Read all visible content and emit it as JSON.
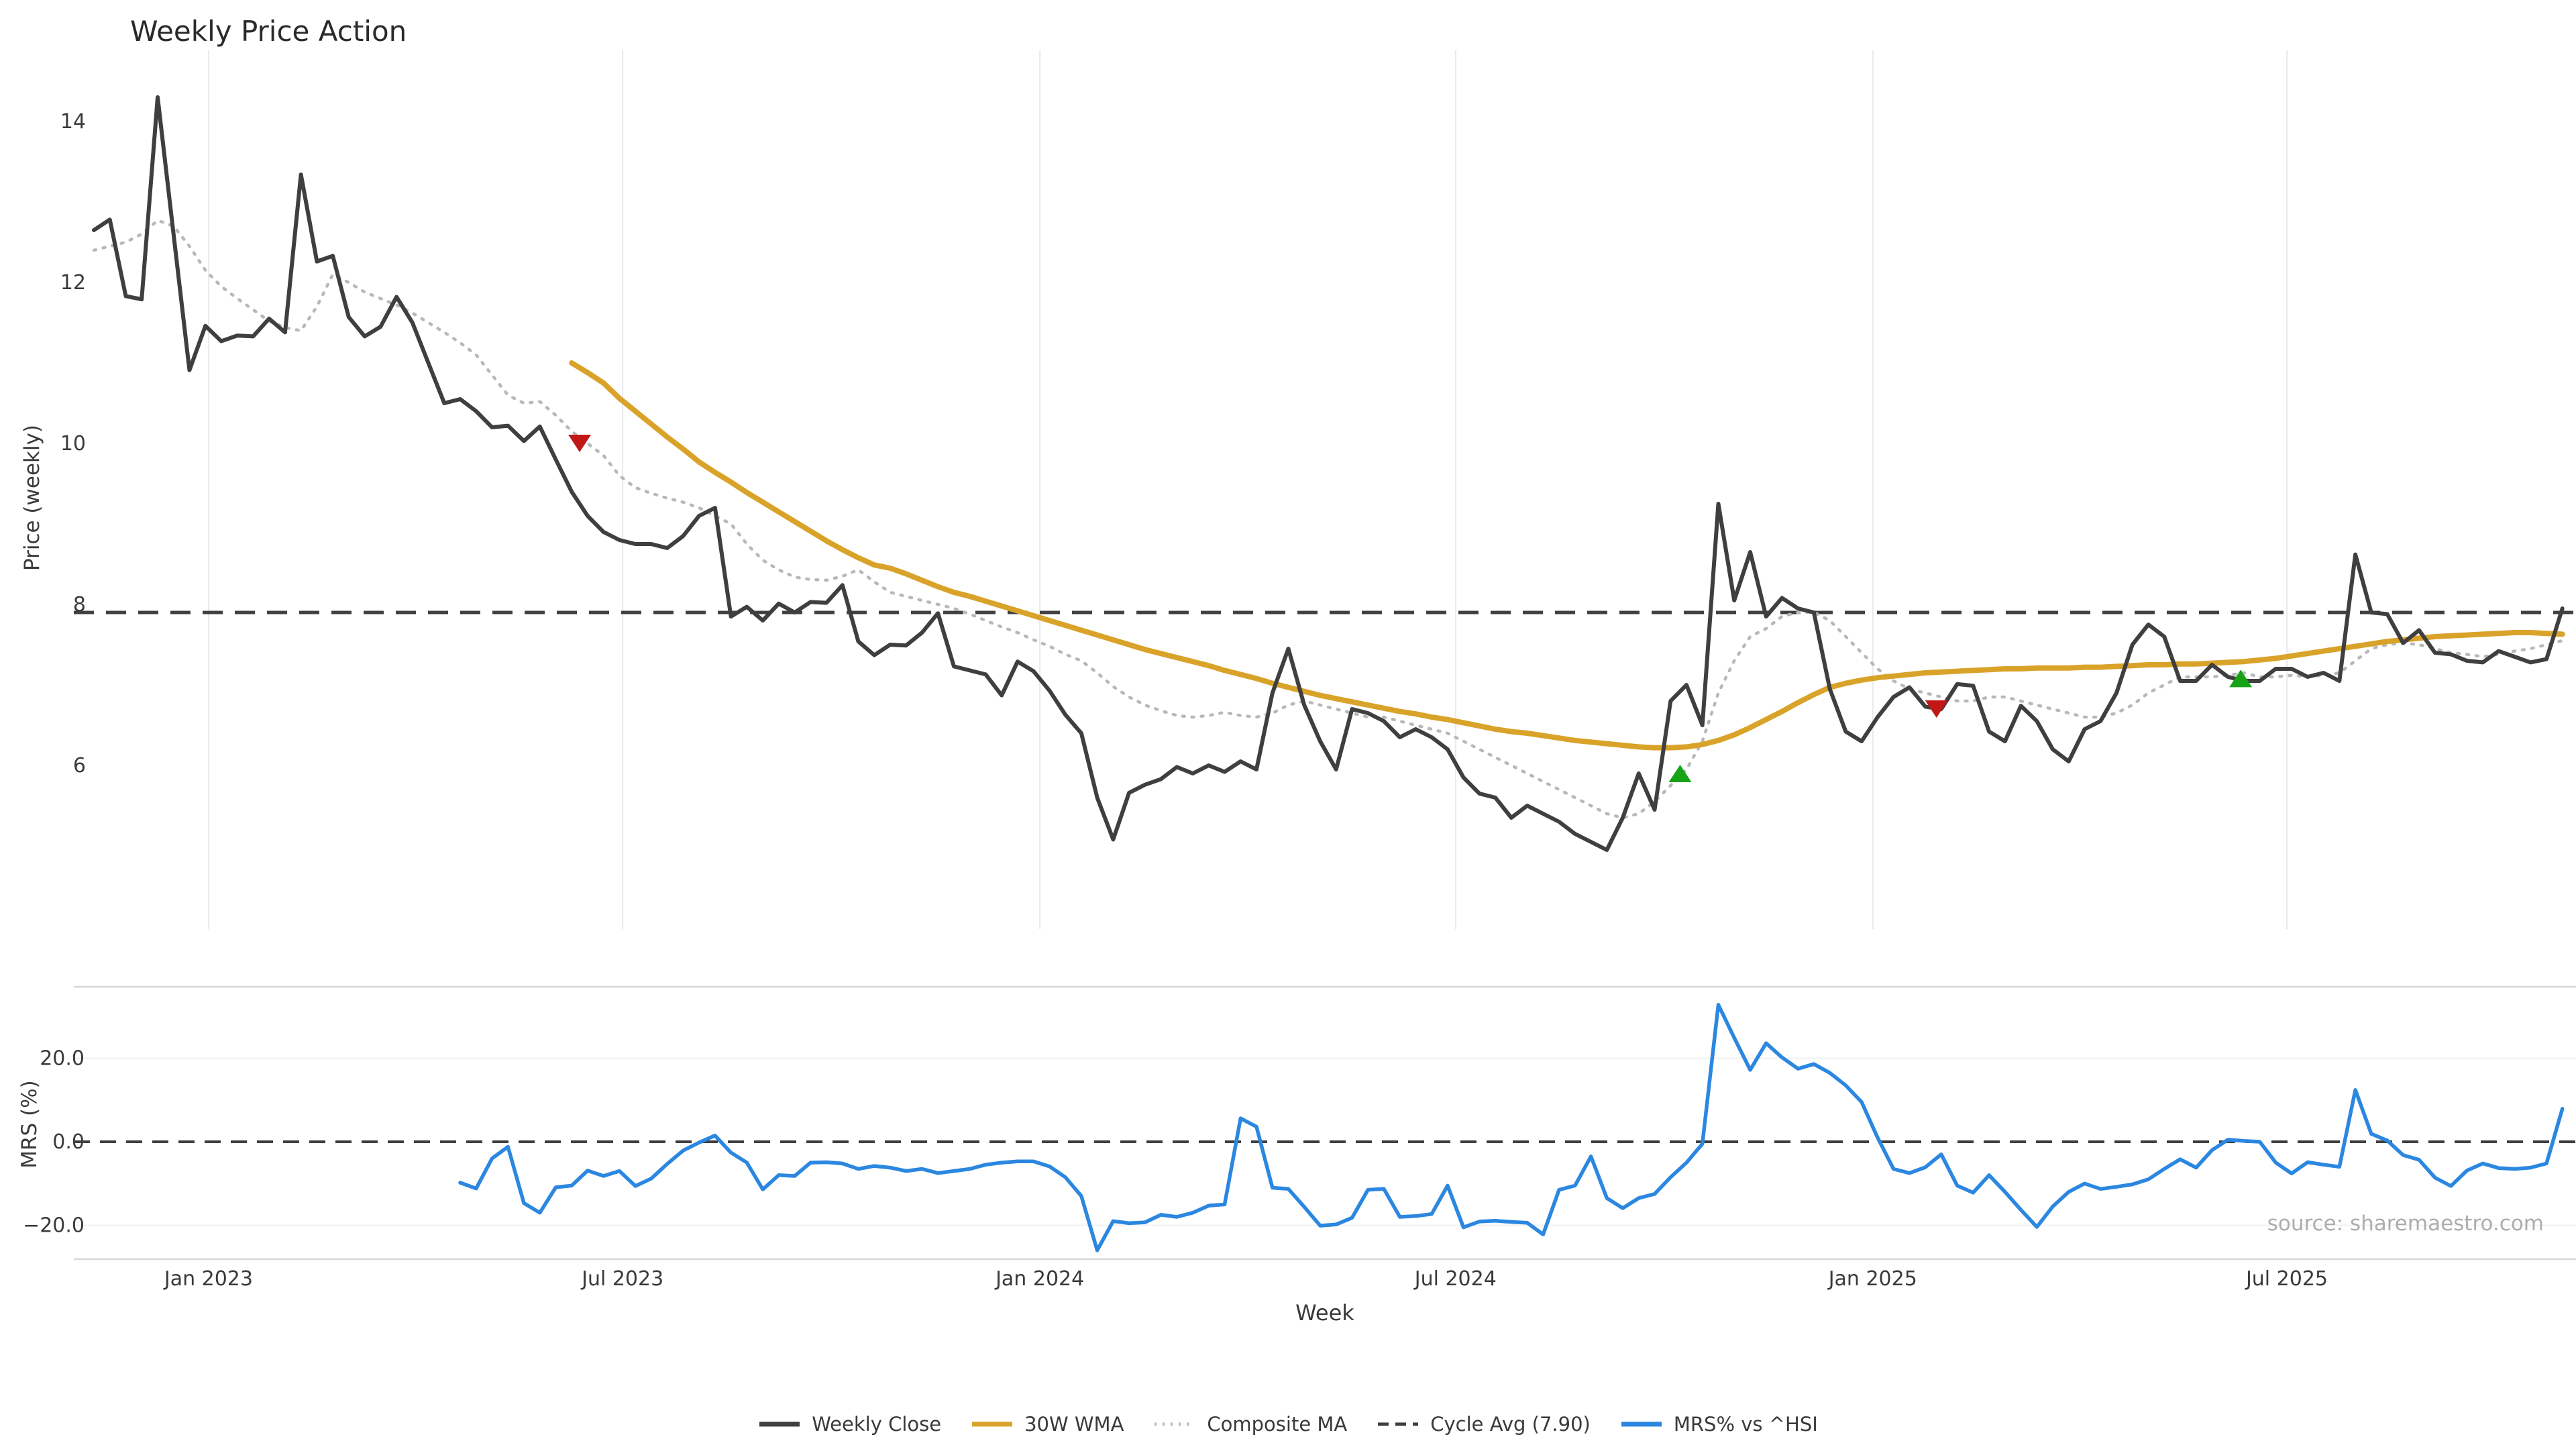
{
  "title": "Weekly Price Action",
  "source_note": "source: sharemaestro.com",
  "colors": {
    "close": "#3f3f3f",
    "wma": "#d9a32a",
    "composite": "#b8b8b8",
    "cycle_avg": "#3f3f3f",
    "mrs": "#2b87e0",
    "buy_marker": "#17a317",
    "sell_marker": "#c21717",
    "grid": "#e9e9f0",
    "panel_grid": "#f0f0f4",
    "spine": "#d6d6dc"
  },
  "legend": [
    {
      "label": "Weekly Close",
      "color": "#3f3f3f",
      "style": "solid"
    },
    {
      "label": "30W WMA",
      "color": "#d9a32a",
      "style": "solid"
    },
    {
      "label": "Composite MA",
      "color": "#b8b8b8",
      "style": "dotted"
    },
    {
      "label": "Cycle Avg (7.90)",
      "color": "#3f3f3f",
      "style": "dashed"
    },
    {
      "label": "MRS% vs ^HSI",
      "color": "#2b87e0",
      "style": "solid"
    }
  ],
  "chart_data": {
    "type": "line",
    "title": "Weekly Price Action",
    "xlabel": "Week",
    "x_unit": "weekly index (0 = first plotted week, ~156 weeks Nov 2022 - Nov 2025)",
    "x_ticks": [
      {
        "label": "Jan 2023",
        "week": 7.2
      },
      {
        "label": "Jul 2023",
        "week": 33.2
      },
      {
        "label": "Jan 2024",
        "week": 59.4
      },
      {
        "label": "Jul 2024",
        "week": 85.5
      },
      {
        "label": "Jan 2025",
        "week": 111.7
      },
      {
        "label": "Jul 2025",
        "week": 137.7
      }
    ],
    "panels": [
      {
        "name": "price",
        "ylabel": "Price (weekly)",
        "y_ticks": [
          {
            "label": "14",
            "value": 14
          },
          {
            "label": "12",
            "value": 12
          },
          {
            "label": "10",
            "value": 10
          },
          {
            "label": "8",
            "value": 8
          },
          {
            "label": "6",
            "value": 6
          }
        ],
        "cycle_avg": 7.9,
        "series": [
          {
            "name": "Weekly Close",
            "start_week": 0,
            "values": [
              12.65,
              12.78,
              11.83,
              11.79,
              14.3,
              12.6,
              10.91,
              11.46,
              11.27,
              11.34,
              11.33,
              11.55,
              11.38,
              13.34,
              12.26,
              12.33,
              11.57,
              11.33,
              11.45,
              11.82,
              11.5,
              11.0,
              10.5,
              10.55,
              10.4,
              10.2,
              10.22,
              10.03,
              10.21,
              9.8,
              9.4,
              9.1,
              8.9,
              8.8,
              8.75,
              8.75,
              8.7,
              8.85,
              9.1,
              9.2,
              7.85,
              7.97,
              7.8,
              8.01,
              7.9,
              8.03,
              8.02,
              8.24,
              7.54,
              7.37,
              7.5,
              7.49,
              7.65,
              7.89,
              7.23,
              7.18,
              7.13,
              6.87,
              7.29,
              7.17,
              6.93,
              6.63,
              6.4,
              5.6,
              5.08,
              5.66,
              5.76,
              5.83,
              5.98,
              5.9,
              6.0,
              5.92,
              6.05,
              5.95,
              6.9,
              7.45,
              6.75,
              6.3,
              5.95,
              6.7,
              6.65,
              6.55,
              6.35,
              6.45,
              6.35,
              6.2,
              5.85,
              5.65,
              5.6,
              5.35,
              5.5,
              5.4,
              5.3,
              5.15,
              5.05,
              4.95,
              5.35,
              5.9,
              5.45,
              6.8,
              7.0,
              6.5,
              9.25,
              8.05,
              8.65,
              7.85,
              8.08,
              7.95,
              7.9,
              6.95,
              6.42,
              6.3,
              6.6,
              6.85,
              6.97,
              6.73,
              6.7,
              7.01,
              6.99,
              6.42,
              6.3,
              6.74,
              6.55,
              6.2,
              6.05,
              6.45,
              6.55,
              6.9,
              7.5,
              7.75,
              7.6,
              7.05,
              7.05,
              7.25,
              7.1,
              7.05,
              7.05,
              7.2,
              7.2,
              7.1,
              7.15,
              7.05,
              8.62,
              7.9,
              7.88,
              7.52,
              7.68,
              7.4,
              7.38,
              7.3,
              7.28,
              7.42,
              7.35,
              7.28,
              7.32,
              7.95
            ]
          },
          {
            "name": "30W WMA",
            "start_week": 30,
            "values": [
              11.0,
              10.88,
              10.75,
              10.56,
              10.4,
              10.24,
              10.08,
              9.93,
              9.77,
              9.64,
              9.52,
              9.39,
              9.27,
              9.15,
              9.03,
              8.91,
              8.79,
              8.68,
              8.58,
              8.49,
              8.45,
              8.38,
              8.3,
              8.22,
              8.15,
              8.1,
              8.04,
              7.98,
              7.92,
              7.86,
              7.8,
              7.74,
              7.68,
              7.62,
              7.56,
              7.5,
              7.44,
              7.39,
              7.34,
              7.29,
              7.24,
              7.18,
              7.13,
              7.08,
              7.02,
              6.97,
              6.92,
              6.87,
              6.83,
              6.79,
              6.75,
              6.71,
              6.67,
              6.64,
              6.6,
              6.57,
              6.53,
              6.49,
              6.45,
              6.42,
              6.4,
              6.37,
              6.34,
              6.31,
              6.29,
              6.27,
              6.25,
              6.23,
              6.22,
              6.22,
              6.23,
              6.26,
              6.31,
              6.38,
              6.47,
              6.57,
              6.67,
              6.78,
              6.88,
              6.97,
              7.02,
              7.06,
              7.09,
              7.11,
              7.13,
              7.15,
              7.16,
              7.17,
              7.18,
              7.19,
              7.2,
              7.2,
              7.21,
              7.21,
              7.21,
              7.22,
              7.22,
              7.23,
              7.24,
              7.25,
              7.25,
              7.26,
              7.26,
              7.27,
              7.28,
              7.29,
              7.31,
              7.33,
              7.36,
              7.39,
              7.42,
              7.45,
              7.48,
              7.51,
              7.54,
              7.56,
              7.58,
              7.6,
              7.61,
              7.62,
              7.63,
              7.64,
              7.65,
              7.65,
              7.64,
              7.63
            ]
          },
          {
            "name": "Composite MA",
            "start_week": 0,
            "values": [
              12.4,
              12.45,
              12.5,
              12.6,
              12.77,
              12.7,
              12.45,
              12.15,
              11.95,
              11.8,
              11.66,
              11.52,
              11.44,
              11.4,
              11.7,
              12.1,
              12.0,
              11.88,
              11.8,
              11.72,
              11.62,
              11.5,
              11.38,
              11.25,
              11.1,
              10.85,
              10.6,
              10.5,
              10.52,
              10.35,
              10.15,
              10.0,
              9.85,
              9.6,
              9.45,
              9.38,
              9.32,
              9.27,
              9.2,
              9.1,
              9.0,
              8.75,
              8.55,
              8.43,
              8.34,
              8.31,
              8.3,
              8.35,
              8.43,
              8.28,
              8.15,
              8.1,
              8.05,
              8.0,
              7.95,
              7.88,
              7.8,
              7.72,
              7.65,
              7.56,
              7.48,
              7.38,
              7.3,
              7.15,
              6.98,
              6.85,
              6.75,
              6.68,
              6.62,
              6.6,
              6.62,
              6.66,
              6.62,
              6.6,
              6.65,
              6.75,
              6.8,
              6.75,
              6.7,
              6.65,
              6.6,
              6.6,
              6.55,
              6.5,
              6.45,
              6.4,
              6.3,
              6.2,
              6.1,
              6.0,
              5.9,
              5.8,
              5.7,
              5.6,
              5.5,
              5.4,
              5.35,
              5.4,
              5.55,
              5.75,
              5.95,
              6.3,
              6.9,
              7.3,
              7.6,
              7.7,
              7.85,
              7.9,
              7.9,
              7.8,
              7.6,
              7.4,
              7.2,
              7.05,
              6.95,
              6.9,
              6.85,
              6.8,
              6.8,
              6.85,
              6.85,
              6.8,
              6.75,
              6.7,
              6.65,
              6.6,
              6.6,
              6.65,
              6.75,
              6.9,
              7.0,
              7.1,
              7.1,
              7.1,
              7.12,
              7.15,
              7.1,
              7.1,
              7.12,
              7.1,
              7.12,
              7.15,
              7.3,
              7.45,
              7.5,
              7.52,
              7.5,
              7.45,
              7.4,
              7.38,
              7.35,
              7.38,
              7.42,
              7.45,
              7.5,
              7.55
            ]
          }
        ],
        "markers": [
          {
            "week": 30.5,
            "value": 10.0,
            "type": "sell"
          },
          {
            "week": 99.6,
            "value": 5.9,
            "type": "buy"
          },
          {
            "week": 115.7,
            "value": 6.7,
            "type": "sell"
          },
          {
            "week": 134.8,
            "value": 7.08,
            "type": "buy"
          }
        ]
      },
      {
        "name": "mrs",
        "ylabel": "MRS (%)",
        "y_ticks": [
          {
            "label": "20.0",
            "value": 20
          },
          {
            "label": "0.0",
            "value": 0
          },
          {
            "label": "−20.0",
            "value": -20
          }
        ],
        "zero_line": 0,
        "series": [
          {
            "name": "MRS% vs ^HSI",
            "start_week": 23,
            "values": [
              -9.8,
              -11.2,
              -4.0,
              -1.2,
              -14.7,
              -17.0,
              -10.9,
              -10.5,
              -6.9,
              -8.2,
              -7.0,
              -10.6,
              -8.8,
              -5.3,
              -2.1,
              -0.2,
              1.5,
              -2.6,
              -5.0,
              -11.4,
              -8.0,
              -8.2,
              -5.0,
              -4.9,
              -5.2,
              -6.5,
              -5.8,
              -6.2,
              -7.0,
              -6.5,
              -7.5,
              -7.0,
              -6.5,
              -5.5,
              -5.0,
              -4.7,
              -4.7,
              -5.9,
              -8.5,
              -13.0,
              -26.0,
              -19.0,
              -19.5,
              -19.3,
              -17.5,
              -18.0,
              -17.0,
              -15.3,
              -15.0,
              5.6,
              3.6,
              -11.0,
              -11.3,
              -15.6,
              -20.1,
              -19.8,
              -18.2,
              -11.5,
              -11.3,
              -18.0,
              -17.8,
              -17.3,
              -10.5,
              -20.5,
              -19.1,
              -18.9,
              -19.2,
              -19.4,
              -22.2,
              -11.5,
              -10.5,
              -3.5,
              -13.5,
              -15.9,
              -13.5,
              -12.5,
              -8.5,
              -5.0,
              -0.5,
              32.8,
              24.9,
              17.2,
              23.6,
              20.2,
              17.5,
              18.6,
              16.5,
              13.5,
              9.5,
              1.0,
              -6.5,
              -7.5,
              -6.1,
              -3.0,
              -10.5,
              -12.2,
              -8.0,
              -12.0,
              -16.3,
              -20.4,
              -15.5,
              -12.0,
              -10.0,
              -11.3,
              -10.8,
              -10.2,
              -9.0,
              -6.5,
              -4.2,
              -6.2,
              -2.0,
              0.5,
              0.2,
              0.0,
              -5.0,
              -7.6,
              -4.9,
              -5.5,
              -6.0,
              12.4,
              1.9,
              0.3,
              -3.2,
              -4.3,
              -8.6,
              -10.6,
              -6.9,
              -5.2,
              -6.3,
              -6.5,
              -6.2,
              -5.2,
              7.9
            ]
          }
        ]
      }
    ]
  }
}
